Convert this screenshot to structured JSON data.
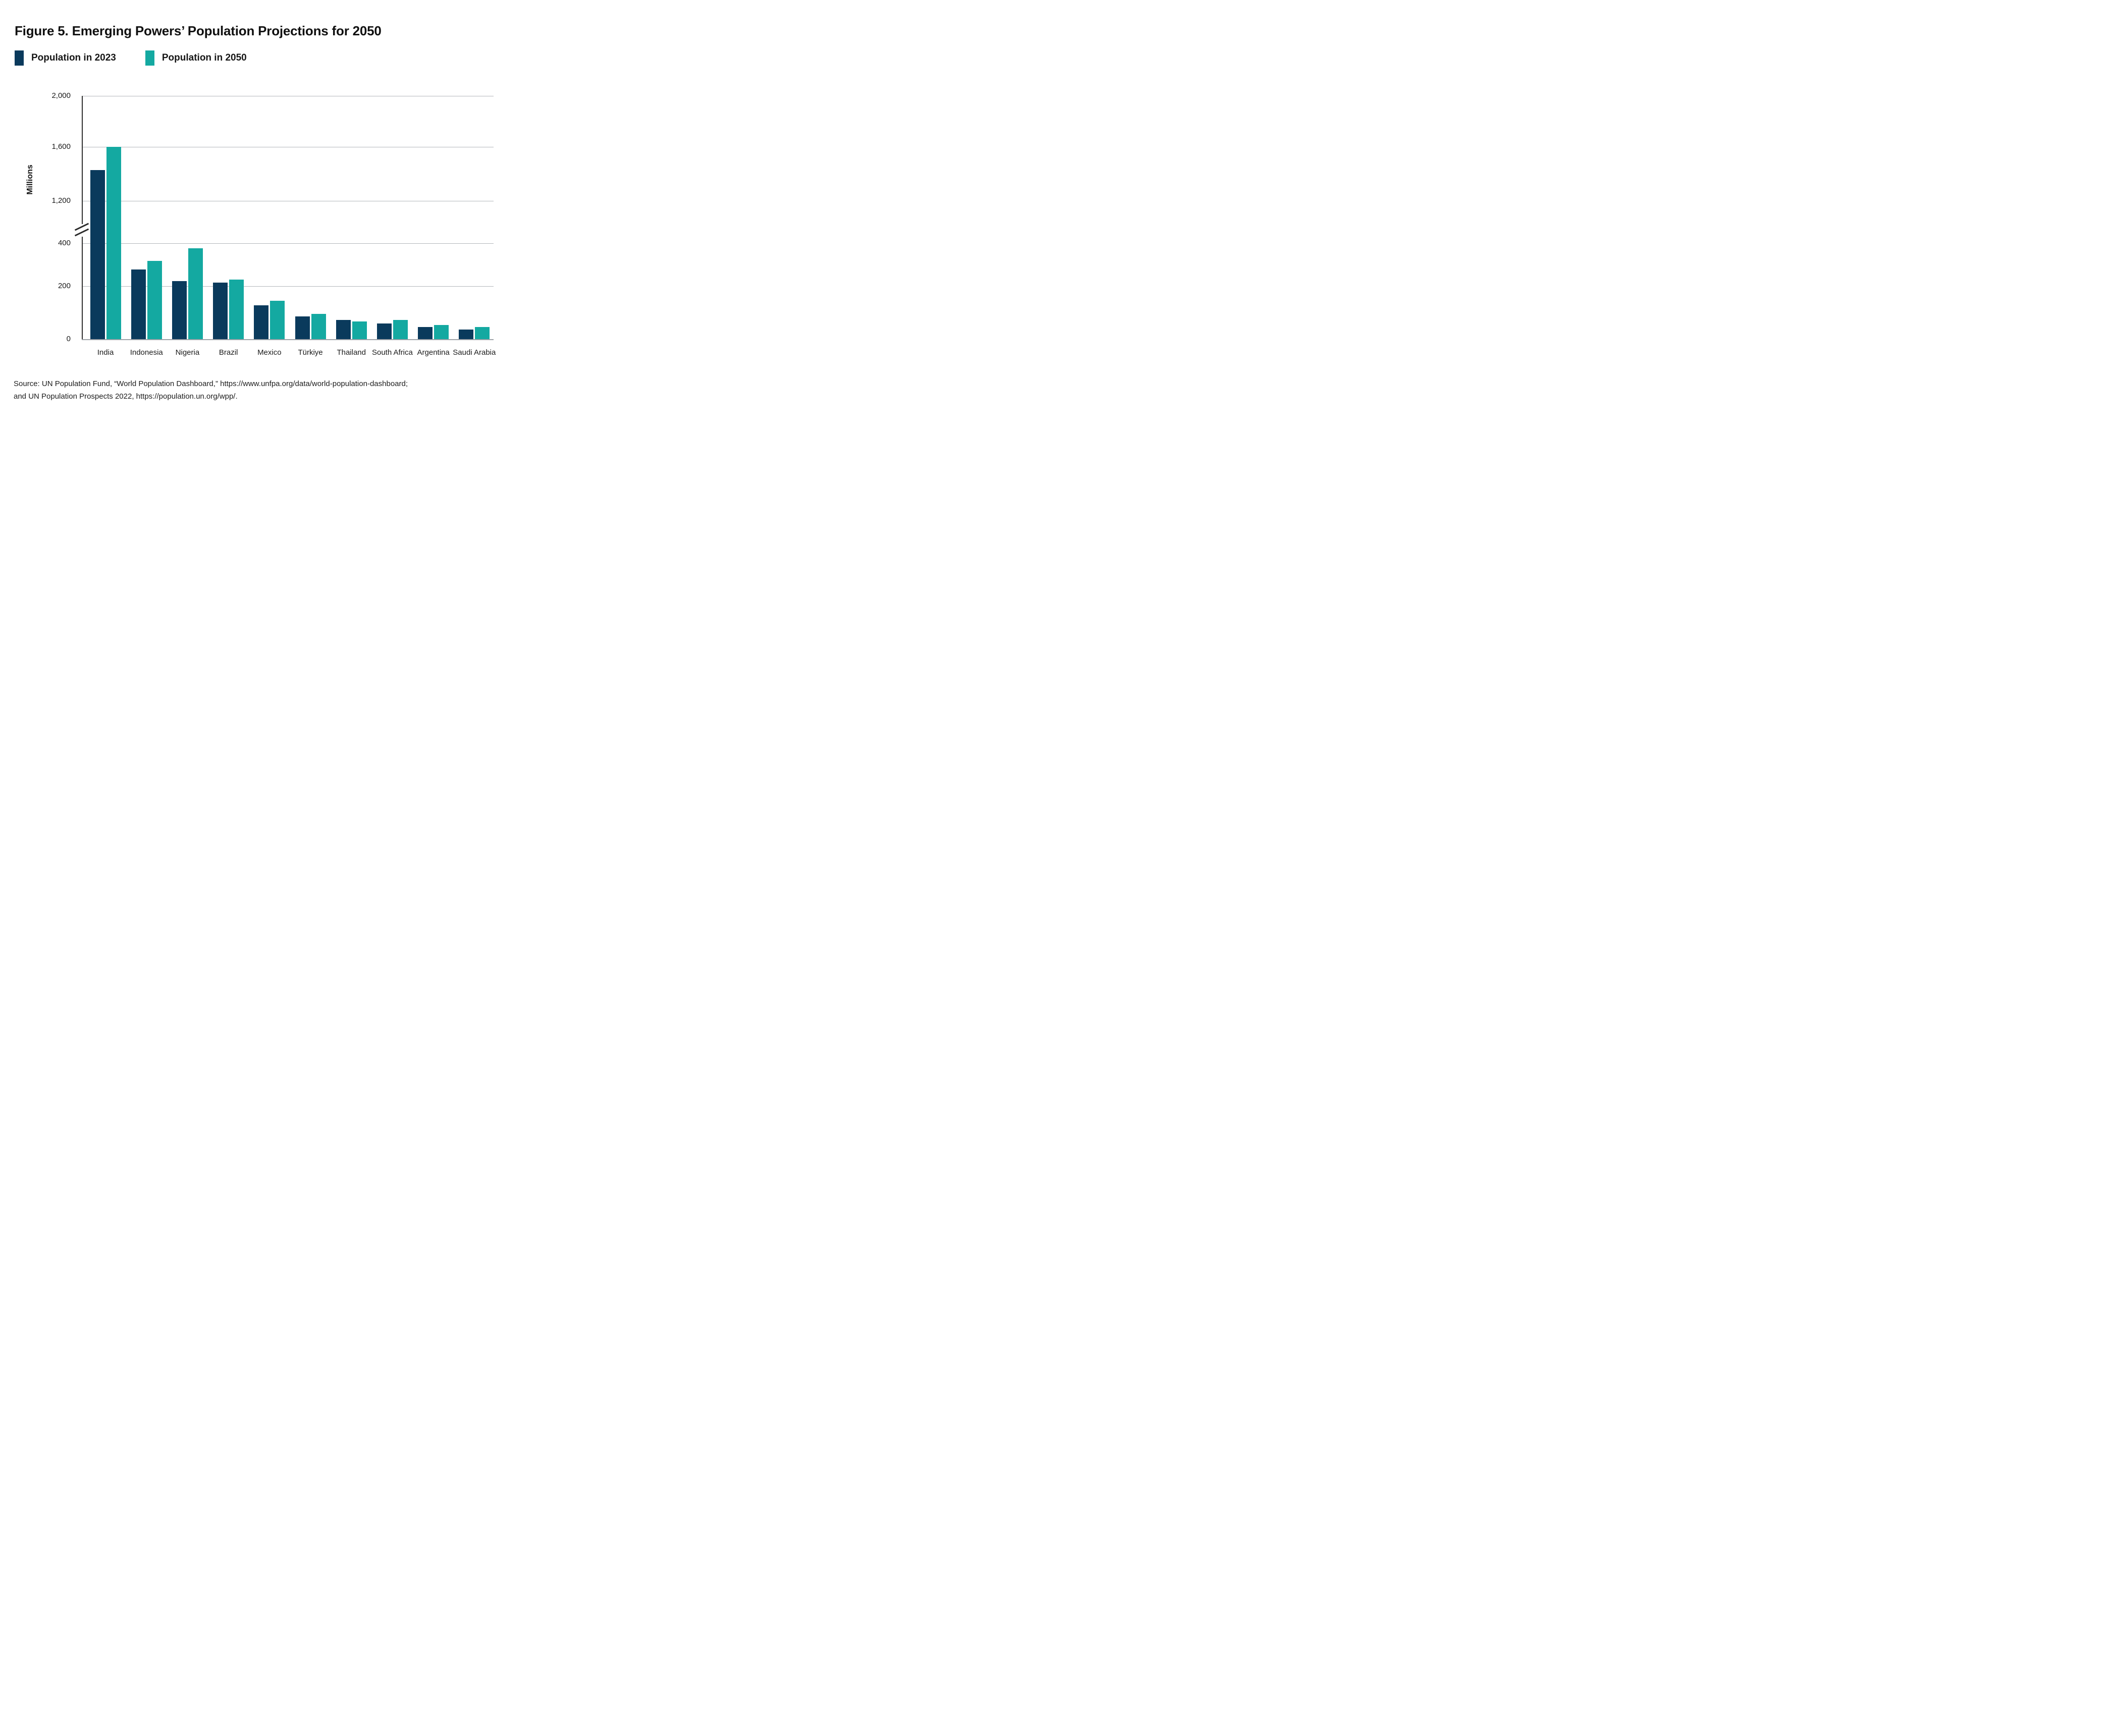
{
  "figure": {
    "title": "Figure 5. Emerging Powers’ Population Projections for 2050",
    "source_line1": "Source: UN Population Fund, “World Population Dashboard,” https://www.unfpa.org/data/world-population-dashboard;",
    "source_line2": "and UN Population Prospects 2022,  https://population.un.org/wpp/."
  },
  "legend": [
    {
      "label": "Population in 2023",
      "color": "#0A3A5C"
    },
    {
      "label": "Population in 2050",
      "color": "#14A9A1"
    }
  ],
  "chart_data": {
    "type": "bar",
    "title": "Figure 5. Emerging Powers’ Population Projections for 2050",
    "categories": [
      "India",
      "Indonesia",
      "Nigeria",
      "Brazil",
      "Mexico",
      "Türkiye",
      "Thailand",
      "South Africa",
      "Argentina",
      "Saudi Arabia"
    ],
    "series": [
      {
        "name": "Population in 2023",
        "color": "#0A3A5C",
        "values": [
          1428,
          277,
          224,
          216,
          128,
          86,
          72,
          60,
          46,
          37
        ]
      },
      {
        "name": "Population in 2050",
        "color": "#14A9A1",
        "values": [
          1600,
          317,
          377,
          231,
          144,
          96,
          66,
          73,
          53,
          45
        ]
      }
    ],
    "xlabel": "",
    "ylabel": "Millions",
    "ylim": [
      0,
      2000
    ],
    "y_ticks": [
      0,
      200,
      400,
      1200,
      1600,
      2000
    ],
    "y_tick_labels": [
      "0",
      "200",
      "400",
      "1,200",
      "1,600",
      "2,000"
    ],
    "axis_break": true,
    "axis_break_between": [
      400,
      1200
    ],
    "grid": true,
    "legend_position": "top-left"
  }
}
